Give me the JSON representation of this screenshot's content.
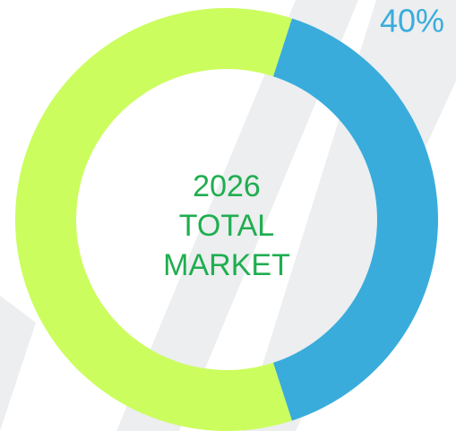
{
  "chart_data": {
    "type": "donut",
    "center_label": [
      "2026",
      "TOTAL",
      "MARKET"
    ],
    "values": [
      40,
      60
    ],
    "value_labels": [
      "40%",
      null
    ],
    "colors": [
      "#39acdc",
      "#ccfd5f"
    ]
  }
}
